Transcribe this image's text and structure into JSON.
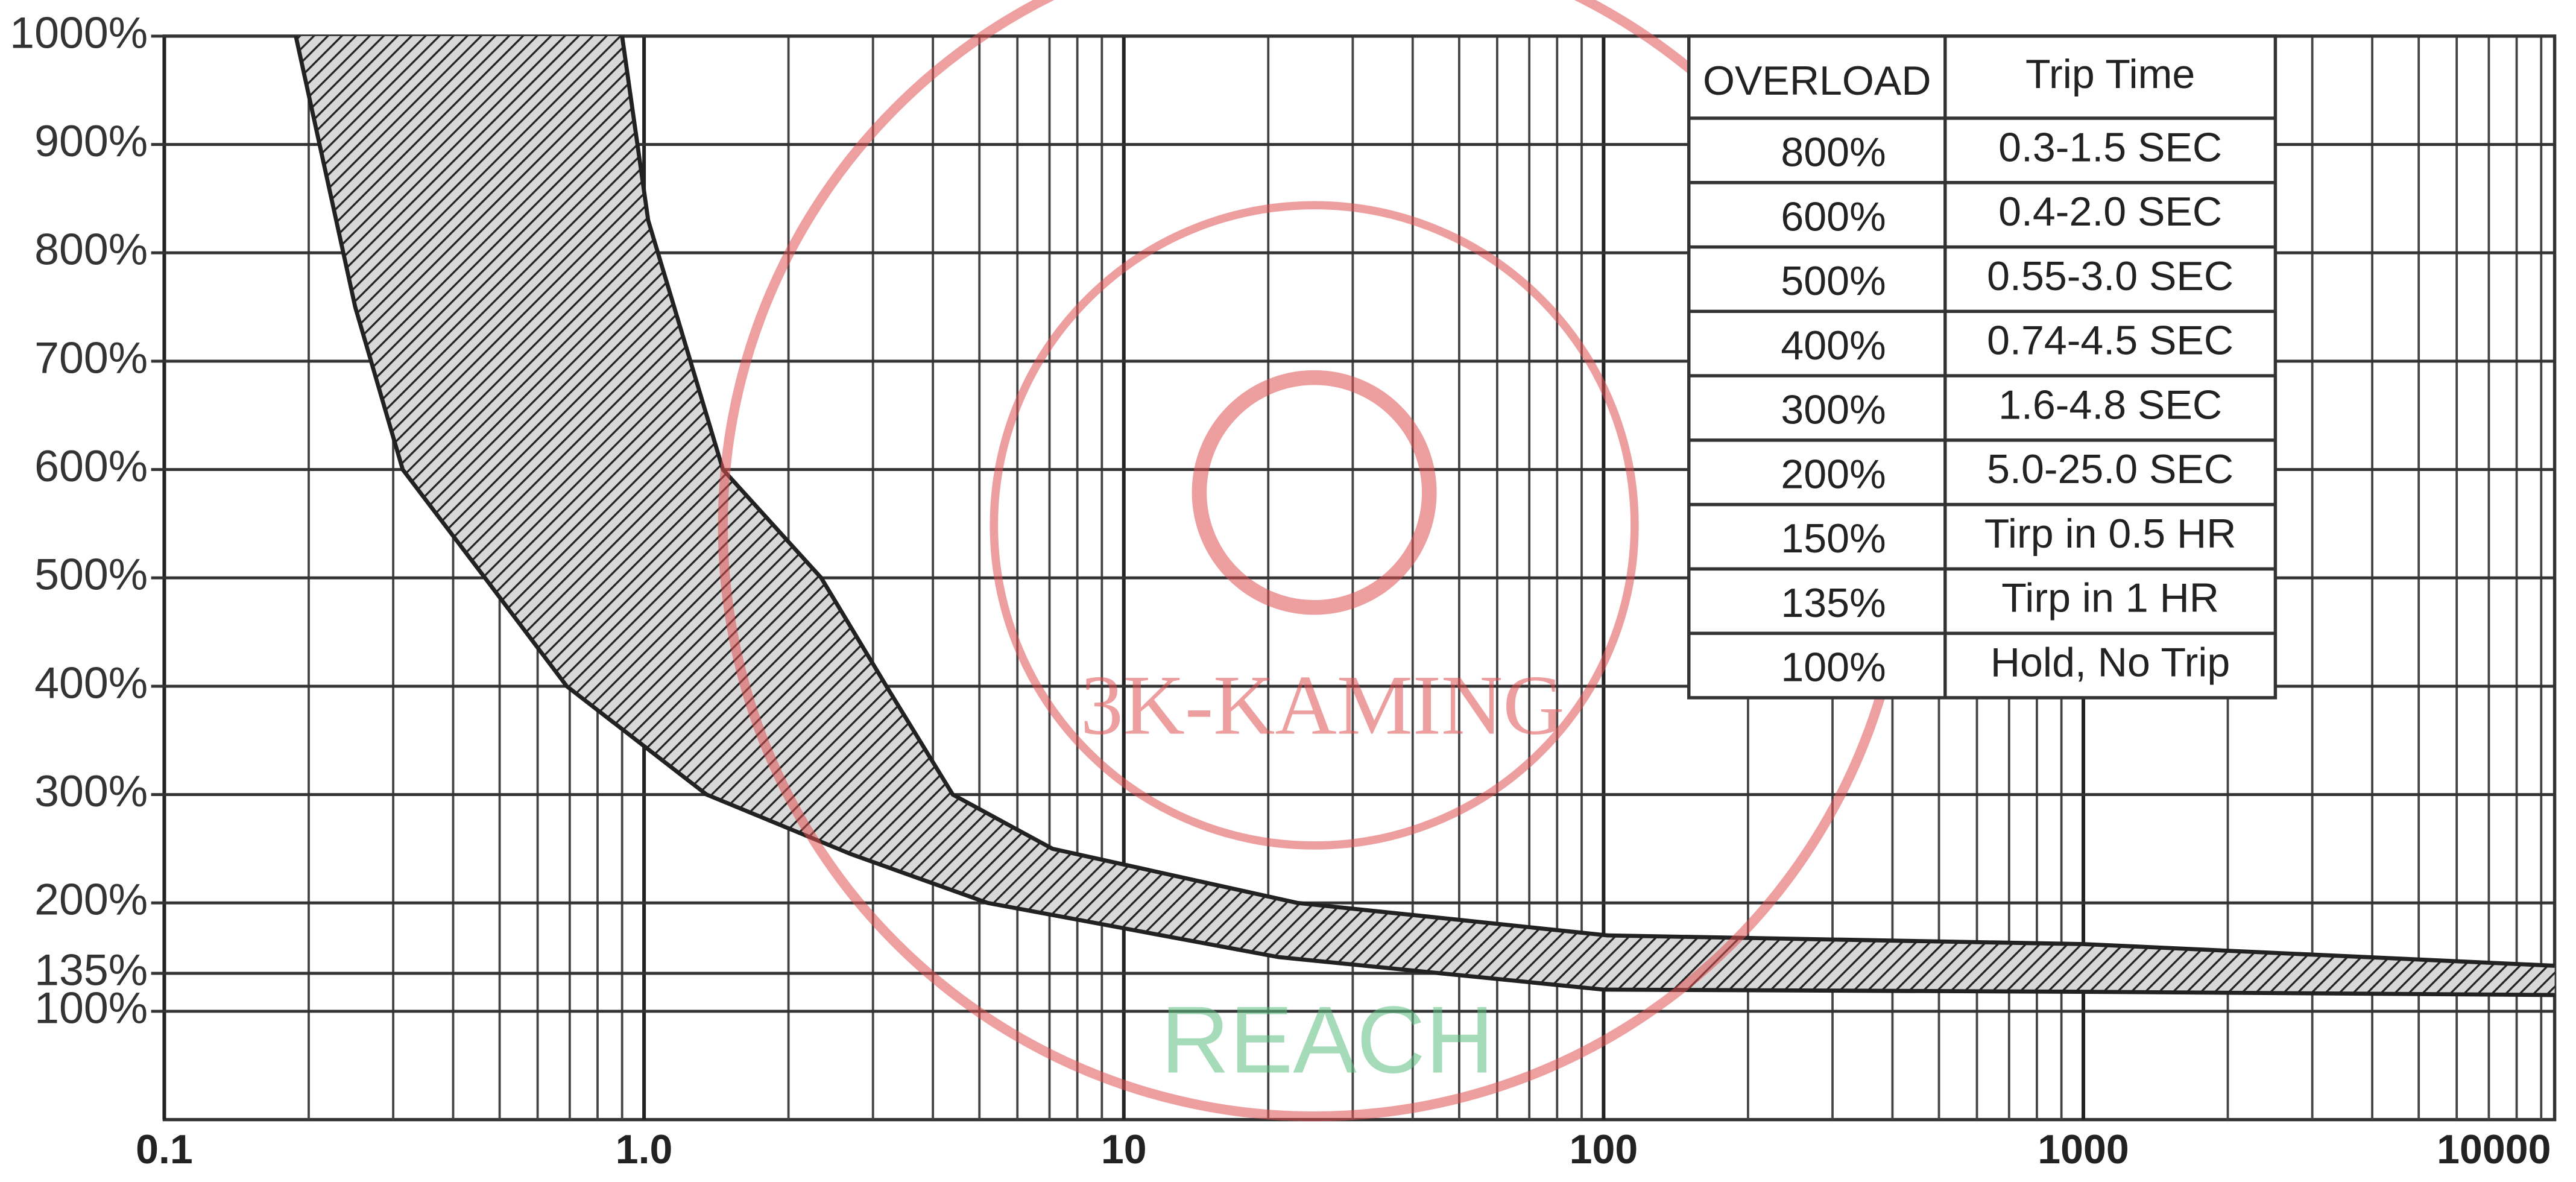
{
  "chart_data": {
    "type": "band",
    "xscale": "log",
    "grid": true,
    "xlim": [
      0.1,
      9600
    ],
    "ylim": [
      0,
      1000
    ],
    "xticks": [
      0.1,
      {
        "value": 1,
        "label": "1.0"
      },
      10,
      100,
      1000,
      10000
    ],
    "yticks": [
      {
        "value": 100,
        "label": "100%"
      },
      {
        "value": 135,
        "label": "135%"
      },
      {
        "value": 200,
        "label": "200%"
      },
      {
        "value": 300,
        "label": "300%"
      },
      {
        "value": 400,
        "label": "400%"
      },
      {
        "value": 500,
        "label": "500%"
      },
      {
        "value": 600,
        "label": "600%"
      },
      {
        "value": 700,
        "label": "700%"
      },
      {
        "value": 800,
        "label": "800%"
      },
      {
        "value": 900,
        "label": "900%"
      },
      {
        "value": 1000,
        "label": "1000%"
      }
    ],
    "color": "#222222",
    "fast": {
      "x": [
        0.188,
        0.25,
        0.314,
        0.466,
        0.69,
        1.35,
        2.7,
        5.2,
        21,
        100,
        1000,
        9600
      ],
      "y": [
        1000,
        750,
        600,
        500,
        400,
        300,
        245,
        200,
        150,
        120,
        118,
        115
      ]
    },
    "slow": {
      "x": [
        0.9,
        1.02,
        1.46,
        2.34,
        3.2,
        4.4,
        7.1,
        23,
        102,
        1000,
        9600
      ],
      "y": [
        1000,
        830,
        600,
        500,
        400,
        300,
        250,
        200,
        170,
        162,
        142
      ]
    }
  },
  "table": {
    "header": [
      "OVERLOAD",
      "Trip Time"
    ],
    "rows": [
      [
        "800%",
        "0.3-1.5 SEC"
      ],
      [
        "600%",
        "0.4-2.0 SEC"
      ],
      [
        "500%",
        "0.55-3.0 SEC"
      ],
      [
        "400%",
        "0.74-4.5 SEC"
      ],
      [
        "300%",
        "1.6-4.8 SEC"
      ],
      [
        "200%",
        "5.0-25.0 SEC"
      ],
      [
        "150%",
        "Tirp in 0.5 HR"
      ],
      [
        "135%",
        "Tirp in 1 HR"
      ],
      [
        "100%",
        "Hold, No Trip"
      ]
    ]
  },
  "watermarks": {
    "logo": "3K-KAMING",
    "badge": "REACH"
  }
}
